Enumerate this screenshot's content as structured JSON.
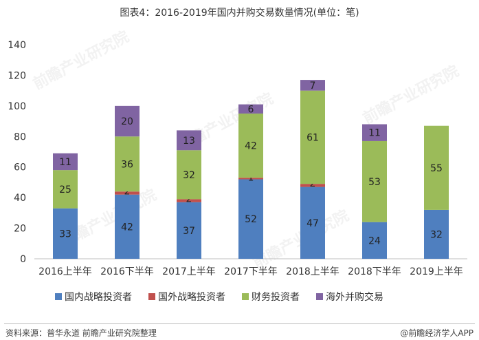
{
  "title": "图表4：2016-2019年国内并购交易数量情况(单位：笔)",
  "footer": {
    "source": "资料来源：普华永道 前瞻产业研究院整理",
    "brand": "@前瞻经济学人APP"
  },
  "watermark": "前瞻产业研究院",
  "colors": {
    "domestic_strategic": "#4f7fbf",
    "foreign_strategic": "#c0504d",
    "financial": "#9bbb59",
    "overseas": "#8064a2"
  },
  "chart_data": {
    "type": "bar",
    "stacked": true,
    "title": "图表4：2016-2019年国内并购交易数量情况(单位：笔)",
    "xlabel": "",
    "ylabel": "",
    "categories": [
      "2016上半年",
      "2016下半年",
      "2017上半年",
      "2017下半年",
      "2018上半年",
      "2018下半年",
      "2019上半年"
    ],
    "ylim": [
      0,
      140
    ],
    "yticks": [
      0,
      20,
      40,
      60,
      80,
      100,
      120,
      140
    ],
    "grid": false,
    "legend_position": "bottom",
    "series": [
      {
        "name": "国内战略投资者",
        "color": "#4f7fbf",
        "values": [
          33,
          42,
          37,
          52,
          47,
          24,
          32
        ],
        "labels": [
          "33",
          "42",
          "37",
          "52",
          "47",
          "24",
          "32"
        ]
      },
      {
        "name": "国外战略投资者",
        "color": "#c0504d",
        "values": [
          0,
          2,
          2,
          1,
          2,
          0,
          0
        ],
        "labels": [
          "",
          "2",
          "2",
          "1",
          "2",
          "",
          ""
        ]
      },
      {
        "name": "财务投资者",
        "color": "#9bbb59",
        "values": [
          25,
          36,
          32,
          42,
          61,
          53,
          55
        ],
        "labels": [
          "25",
          "36",
          "32",
          "42",
          "61",
          "53",
          "55"
        ]
      },
      {
        "name": "海外并购交易",
        "color": "#8064a2",
        "values": [
          11,
          20,
          13,
          6,
          7,
          11,
          0
        ],
        "labels": [
          "11",
          "20",
          "13",
          "6",
          "7",
          "11",
          ""
        ]
      }
    ]
  }
}
